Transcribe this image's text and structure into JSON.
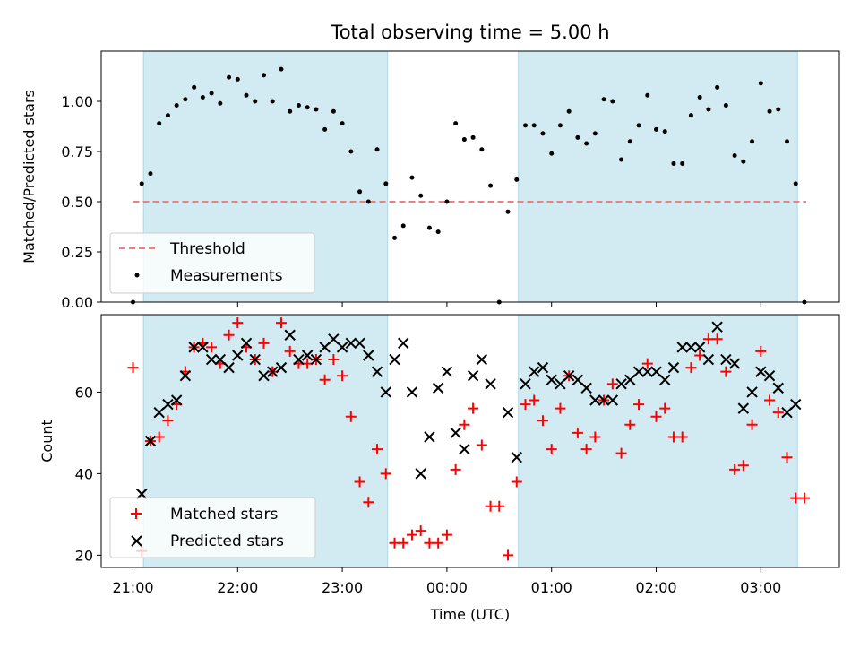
{
  "title": "Total observing time = 5.00 h",
  "colors": {
    "shade": "#add8e6",
    "threshold": "#f08080",
    "measurements": "#000000",
    "matched": "#ff0000",
    "predicted": "#000000"
  },
  "chart_data": [
    {
      "type": "scatter",
      "panel": "top",
      "title": "Total observing time = 5.00 h",
      "xlabel": "",
      "ylabel": "Matched/Predicted stars",
      "xlim": [
        "20:52",
        "03:52"
      ],
      "ylim": [
        0.0,
        1.25
      ],
      "yticks": [
        0.0,
        0.25,
        0.5,
        0.75,
        1.0
      ],
      "ytick_labels": [
        "0.00",
        "0.25",
        "0.50",
        "0.75",
        "1.00"
      ],
      "shaded_spans": [
        [
          "21:06",
          "23:26"
        ],
        [
          "00:41",
          "03:21"
        ]
      ],
      "threshold": {
        "name": "Threshold",
        "y": 0.5,
        "x_range": [
          "21:00",
          "03:26"
        ]
      },
      "legend": {
        "location": "lower-left",
        "entries": [
          "Threshold",
          "Measurements"
        ]
      },
      "series": [
        {
          "name": "Measurements",
          "x": [
            "21:00",
            "21:05",
            "21:10",
            "21:15",
            "21:20",
            "21:25",
            "21:30",
            "21:35",
            "21:40",
            "21:45",
            "21:50",
            "21:55",
            "22:00",
            "22:05",
            "22:10",
            "22:15",
            "22:20",
            "22:25",
            "22:30",
            "22:35",
            "22:40",
            "22:45",
            "22:50",
            "22:55",
            "23:00",
            "23:05",
            "23:10",
            "23:15",
            "23:20",
            "23:25",
            "23:30",
            "23:35",
            "23:40",
            "23:45",
            "23:50",
            "23:55",
            "00:00",
            "00:05",
            "00:10",
            "00:15",
            "00:20",
            "00:25",
            "00:30",
            "00:35",
            "00:40",
            "00:45",
            "00:50",
            "00:55",
            "01:00",
            "01:05",
            "01:10",
            "01:15",
            "01:20",
            "01:25",
            "01:30",
            "01:35",
            "01:40",
            "01:45",
            "01:50",
            "01:55",
            "02:00",
            "02:05",
            "02:10",
            "02:15",
            "02:20",
            "02:25",
            "02:30",
            "02:35",
            "02:40",
            "02:45",
            "02:50",
            "02:55",
            "03:00",
            "03:05",
            "03:10",
            "03:15",
            "03:20",
            "03:25"
          ],
          "y": [
            0.0,
            0.59,
            0.64,
            0.89,
            0.93,
            0.98,
            1.01,
            1.07,
            1.02,
            1.04,
            0.99,
            1.12,
            1.11,
            1.03,
            1.0,
            1.13,
            1.0,
            1.16,
            0.95,
            0.98,
            0.97,
            0.96,
            0.86,
            0.95,
            0.89,
            0.75,
            0.55,
            0.5,
            0.76,
            0.59,
            0.32,
            0.38,
            0.62,
            0.53,
            0.37,
            0.35,
            0.5,
            0.89,
            0.81,
            0.82,
            0.76,
            0.58,
            0.0,
            0.45,
            0.61,
            0.88,
            0.88,
            0.84,
            0.74,
            0.88,
            0.95,
            0.82,
            0.79,
            0.84,
            1.01,
            1.0,
            0.71,
            0.8,
            0.88,
            1.03,
            0.86,
            0.85,
            0.69,
            0.69,
            0.93,
            1.02,
            0.96,
            1.07,
            0.98,
            0.73,
            0.7,
            0.8,
            1.09,
            0.95,
            0.96,
            0.8,
            0.59,
            0.0
          ]
        }
      ]
    },
    {
      "type": "scatter",
      "panel": "bottom",
      "xlabel": "Time (UTC)",
      "ylabel": "Count",
      "xlim": [
        "20:52",
        "03:52"
      ],
      "ylim": [
        17,
        79
      ],
      "yticks": [
        20,
        40,
        60
      ],
      "ytick_labels": [
        "20",
        "40",
        "60"
      ],
      "xticks": [
        "21:00",
        "22:00",
        "23:00",
        "00:00",
        "01:00",
        "02:00",
        "03:00"
      ],
      "shaded_spans": [
        [
          "21:06",
          "23:26"
        ],
        [
          "00:41",
          "03:21"
        ]
      ],
      "legend": {
        "location": "lower-left",
        "entries": [
          "Matched stars",
          "Predicted stars"
        ]
      },
      "series": [
        {
          "name": "Matched stars",
          "marker": "+",
          "x": [
            "21:00",
            "21:05",
            "21:10",
            "21:15",
            "21:20",
            "21:25",
            "21:30",
            "21:35",
            "21:40",
            "21:45",
            "21:50",
            "21:55",
            "22:00",
            "22:05",
            "22:10",
            "22:15",
            "22:20",
            "22:25",
            "22:30",
            "22:35",
            "22:40",
            "22:45",
            "22:50",
            "22:55",
            "23:00",
            "23:05",
            "23:10",
            "23:15",
            "23:20",
            "23:25",
            "23:30",
            "23:35",
            "23:40",
            "23:45",
            "23:50",
            "23:55",
            "00:00",
            "00:05",
            "00:10",
            "00:15",
            "00:20",
            "00:25",
            "00:30",
            "00:35",
            "00:40",
            "00:45",
            "00:50",
            "00:55",
            "01:00",
            "01:05",
            "01:10",
            "01:15",
            "01:20",
            "01:25",
            "01:30",
            "01:35",
            "01:40",
            "01:45",
            "01:50",
            "01:55",
            "02:00",
            "02:05",
            "02:10",
            "02:15",
            "02:20",
            "02:25",
            "02:30",
            "02:35",
            "02:40",
            "02:45",
            "02:50",
            "02:55",
            "03:00",
            "03:05",
            "03:10",
            "03:15",
            "03:20",
            "03:25"
          ],
          "y": [
            66,
            21,
            48,
            49,
            53,
            57,
            65,
            71,
            72,
            71,
            67,
            74,
            77,
            71,
            68,
            72,
            65,
            77,
            70,
            67,
            67,
            68,
            63,
            68,
            64,
            54,
            38,
            33,
            46,
            40,
            23,
            23,
            25,
            26,
            23,
            23,
            25,
            41,
            52,
            56,
            47,
            32,
            32,
            20,
            38,
            57,
            58,
            53,
            46,
            56,
            64,
            50,
            46,
            49,
            58,
            62,
            45,
            52,
            57,
            67,
            54,
            56,
            49,
            49,
            66,
            69,
            73,
            73,
            65,
            41,
            42,
            52,
            70,
            58,
            55,
            44,
            34,
            34
          ]
        },
        {
          "name": "Predicted stars",
          "marker": "x",
          "x": [
            "21:05",
            "21:10",
            "21:15",
            "21:20",
            "21:25",
            "21:30",
            "21:35",
            "21:40",
            "21:45",
            "21:50",
            "21:55",
            "22:00",
            "22:05",
            "22:10",
            "22:15",
            "22:20",
            "22:25",
            "22:30",
            "22:35",
            "22:40",
            "22:45",
            "22:50",
            "22:55",
            "23:00",
            "23:05",
            "23:10",
            "23:15",
            "23:20",
            "23:25",
            "23:30",
            "23:35",
            "23:40",
            "23:45",
            "23:50",
            "23:55",
            "00:00",
            "00:05",
            "00:10",
            "00:15",
            "00:20",
            "00:25",
            "00:35",
            "00:40",
            "00:45",
            "00:50",
            "00:55",
            "01:00",
            "01:05",
            "01:10",
            "01:15",
            "01:20",
            "01:25",
            "01:30",
            "01:35",
            "01:40",
            "01:45",
            "01:50",
            "01:55",
            "02:00",
            "02:05",
            "02:10",
            "02:15",
            "02:20",
            "02:25",
            "02:30",
            "02:35",
            "02:40",
            "02:45",
            "02:50",
            "02:55",
            "03:00",
            "03:05",
            "03:10",
            "03:15",
            "03:20"
          ],
          "y": [
            35,
            48,
            55,
            57,
            58,
            64,
            71,
            71,
            68,
            68,
            66,
            69,
            72,
            68,
            64,
            65,
            66,
            74,
            68,
            69,
            68,
            71,
            73,
            71,
            72,
            72,
            69,
            65,
            60,
            68,
            72,
            60,
            40,
            49,
            61,
            65,
            50,
            46,
            64,
            68,
            62,
            55,
            44,
            62,
            65,
            66,
            63,
            62,
            64,
            63,
            61,
            58,
            58,
            58,
            62,
            63,
            65,
            65,
            65,
            63,
            66,
            71,
            71,
            71,
            68,
            76,
            68,
            67,
            56,
            60,
            65,
            64,
            61,
            55,
            57
          ]
        }
      ]
    }
  ]
}
